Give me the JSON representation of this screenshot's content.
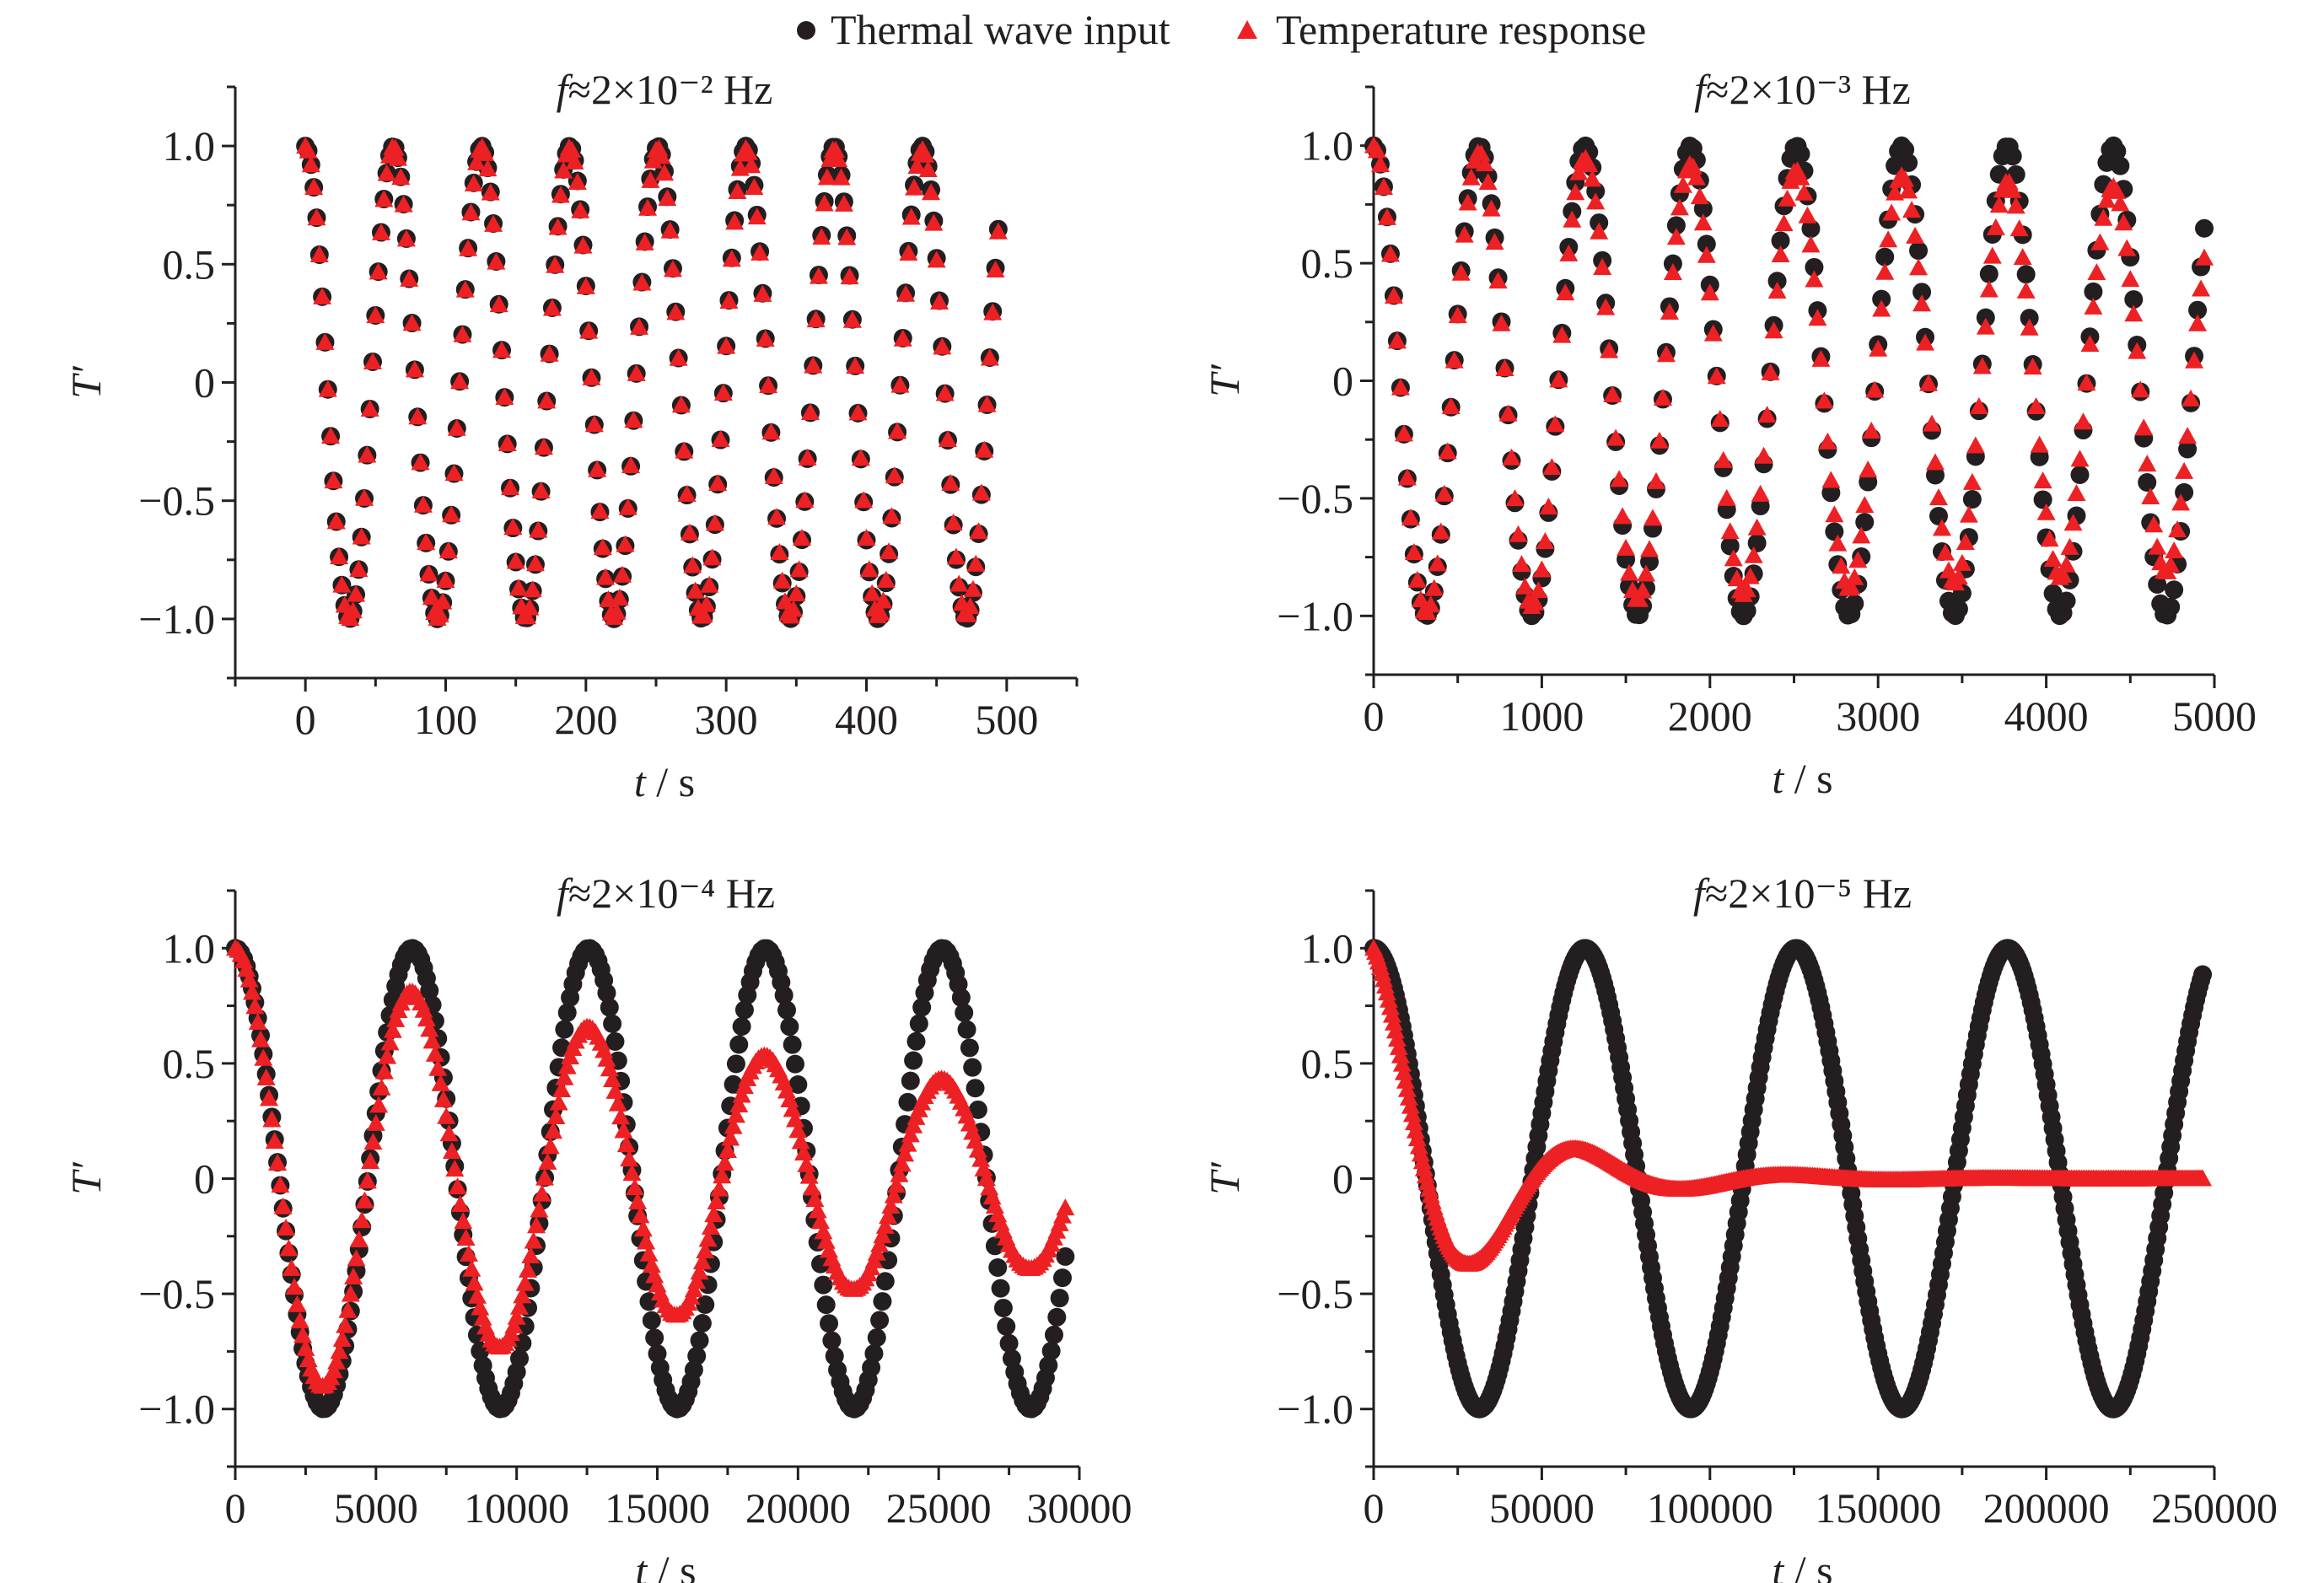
{
  "legend": {
    "position": "top-center",
    "entries": [
      {
        "label": "Thermal wave input",
        "marker": "circle",
        "color": "#231f20"
      },
      {
        "label": "Temperature response",
        "marker": "triangle",
        "color": "#ed2024"
      }
    ]
  },
  "chart_data": [
    {
      "type": "scatter",
      "title": "f≈2×10⁻² Hz",
      "xlabel": "t / s",
      "ylabel": "T′",
      "xlim": [
        -50,
        550
      ],
      "ylim": [
        -1.25,
        1.25
      ],
      "xticks": [
        0,
        100,
        200,
        300,
        400,
        500
      ],
      "xtick_labels": [
        "0",
        "100",
        "200",
        "300",
        "400",
        "500"
      ],
      "xminor": 50,
      "yticks": [
        1.0,
        0.5,
        0,
        -0.5,
        -1.0
      ],
      "ytick_labels": [
        "1.0",
        "0.5",
        "0",
        "−0.5",
        "−1.0"
      ],
      "grid": false,
      "series": [
        {
          "name": "Thermal wave input",
          "t_start": 0,
          "t_step": 2,
          "t_end": 494,
          "omega": 0.1,
          "decay_tau": null,
          "formula": "cos(omega*t)"
        },
        {
          "name": "Temperature response",
          "t_start": 0,
          "t_step": 2,
          "t_end": 494,
          "omega": 0.1,
          "decay_tau": 30000,
          "formula": "exp(-t/tau)*cos(omega*t)"
        }
      ]
    },
    {
      "type": "scatter",
      "title": "f≈2×10⁻³ Hz",
      "xlabel": "t / s",
      "ylabel": "T′",
      "xlim": [
        0,
        5000
      ],
      "ylim": [
        -1.25,
        1.25
      ],
      "xticks": [
        0,
        1000,
        2000,
        3000,
        4000,
        5000
      ],
      "xtick_labels": [
        "0",
        "1000",
        "2000",
        "3000",
        "4000",
        "5000"
      ],
      "xminor": 500,
      "yticks": [
        1.0,
        0.5,
        0,
        -0.5,
        -1.0
      ],
      "ytick_labels": [
        "1.0",
        "0.5",
        "0",
        "−0.5",
        "−1.0"
      ],
      "grid": false,
      "series": [
        {
          "name": "Thermal wave input",
          "t_start": 0,
          "t_step": 20,
          "t_end": 4940,
          "omega": 0.01,
          "decay_tau": null,
          "formula": "cos(omega*t)"
        },
        {
          "name": "Temperature response",
          "t_start": 0,
          "t_step": 20,
          "t_end": 4940,
          "omega": 0.01,
          "decay_tau": 23000,
          "formula": "exp(-t/tau)*cos(omega*t)"
        }
      ]
    },
    {
      "type": "scatter",
      "title": "f≈2×10⁻⁴ Hz",
      "xlabel": "t / s",
      "ylabel": "T′",
      "xlim": [
        0,
        30000
      ],
      "ylim": [
        -1.25,
        1.25
      ],
      "xticks": [
        0,
        5000,
        10000,
        15000,
        20000,
        25000,
        30000
      ],
      "xtick_labels": [
        "0",
        "5000",
        "10000",
        "15000",
        "20000",
        "25000",
        "30000"
      ],
      "xminor": 2500,
      "yticks": [
        1.0,
        0.5,
        0,
        -0.5,
        -1.0
      ],
      "ytick_labels": [
        "1.0",
        "0.5",
        "0",
        "−0.5",
        "−1.0"
      ],
      "grid": false,
      "series": [
        {
          "name": "Thermal wave input",
          "t_start": 0,
          "t_step": 100,
          "t_end": 29500,
          "omega": 0.001,
          "decay_tau": null,
          "formula": "cos(omega*t)"
        },
        {
          "name": "Temperature response",
          "t_start": 0,
          "t_step": 100,
          "t_end": 29500,
          "omega": 0.001,
          "decay_tau": 30000,
          "formula": "exp(-t/tau)*cos(omega*t)"
        }
      ]
    },
    {
      "type": "scatter",
      "title": "f≈2×10⁻⁵ Hz",
      "xlabel": "t / s",
      "ylabel": "T′",
      "xlim": [
        0,
        250000
      ],
      "ylim": [
        -1.25,
        1.25
      ],
      "xticks": [
        0,
        50000,
        100000,
        150000,
        200000,
        250000
      ],
      "xtick_labels": [
        "0",
        "50000",
        "100000",
        "150000",
        "200000",
        "250000"
      ],
      "xminor": 25000,
      "yticks": [
        1.0,
        0.5,
        0,
        -0.5,
        -1.0
      ],
      "ytick_labels": [
        "1.0",
        "0.5",
        "0",
        "−0.5",
        "−1.0"
      ],
      "grid": false,
      "series": [
        {
          "name": "Thermal wave input",
          "t_start": 0,
          "t_step": 500,
          "t_end": 246500,
          "omega": 0.0001,
          "decay_tau": null,
          "formula": "cos(omega*t)"
        },
        {
          "name": "Temperature response",
          "t_start": 0,
          "t_step": 500,
          "t_end": 246500,
          "omega": 0.0001,
          "decay_tau": 30000,
          "formula": "exp(-t/tau)*cos(omega*t)"
        }
      ]
    }
  ]
}
